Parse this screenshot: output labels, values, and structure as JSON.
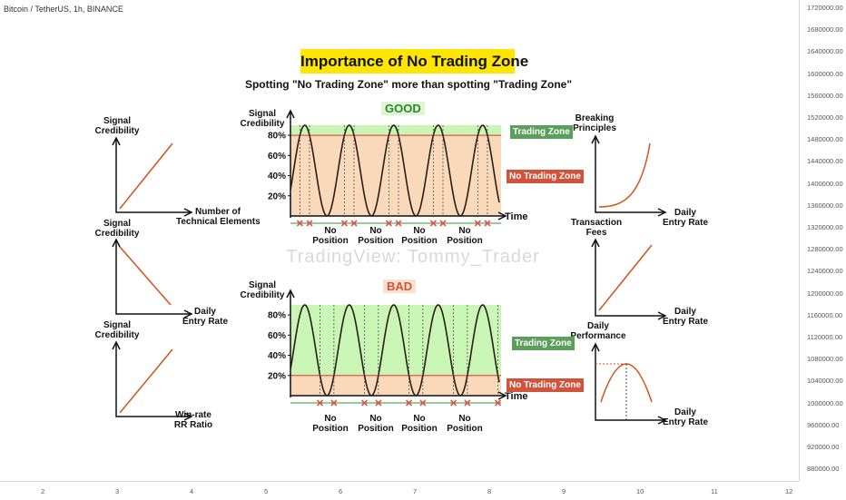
{
  "symbol_label": "Bitcoin / TetherUS, 1h, BINANCE",
  "price_axis": [
    "1720000.00",
    "1680000.00",
    "1640000.00",
    "1600000.00",
    "1560000.00",
    "1520000.00",
    "1480000.00",
    "1440000.00",
    "1400000.00",
    "1360000.00",
    "1320000.00",
    "1280000.00",
    "1240000.00",
    "1200000.00",
    "1160000.00",
    "1120000.00",
    "1080000.00",
    "1040000.00",
    "1000000.00",
    "960000.00",
    "920000.00",
    "880000.00"
  ],
  "time_axis": [
    "2",
    "3",
    "4",
    "5",
    "6",
    "7",
    "8",
    "9",
    "10",
    "11",
    "12"
  ],
  "title": "Importance of No Trading Zone",
  "subtitle": "Spotting \"No Trading Zone\" more than spotting \"Trading Zone\"",
  "watermark": "TradingView: Tommy_Trader",
  "left_charts": [
    {
      "y_label_1": "Signal",
      "y_label_2": "Credibility",
      "x_label_1": "Number of",
      "x_label_2": "Technical Elements",
      "trend": "up"
    },
    {
      "y_label_1": "Signal",
      "y_label_2": "Credibility",
      "x_label_1": "Daily",
      "x_label_2": "Entry Rate",
      "trend": "down"
    },
    {
      "y_label_1": "Signal",
      "y_label_2": "Credibility",
      "x_label_1": "Win-rate",
      "x_label_2": "RR Ratio",
      "trend": "up"
    }
  ],
  "right_charts": [
    {
      "y_label_1": "Breaking",
      "y_label_2": "Principles",
      "x_label_1": "Daily",
      "x_label_2": "Entry Rate",
      "trend": "exponential"
    },
    {
      "y_label_1": "Transaction",
      "y_label_2": "Fees",
      "x_label_1": "Daily",
      "x_label_2": "Entry Rate",
      "trend": "up"
    },
    {
      "y_label_1": "Daily",
      "y_label_2": "Performance",
      "x_label_1": "Daily",
      "x_label_2": "Entry Rate",
      "trend": "peak"
    }
  ],
  "center_top": {
    "verdict": "GOOD",
    "y_label_1": "Signal",
    "y_label_2": "Credibility",
    "x_label": "Time",
    "yticks": [
      "80%",
      "60%",
      "40%",
      "20%"
    ],
    "zone_threshold": 0.8,
    "trading_zone_label": "Trading Zone",
    "no_trading_zone_label": "No Trading Zone",
    "no_position_labels": [
      [
        "No",
        "Position"
      ],
      [
        "No",
        "Position"
      ],
      [
        "No",
        "Position"
      ],
      [
        "No",
        "Position"
      ]
    ]
  },
  "center_bottom": {
    "verdict": "BAD",
    "y_label_1": "Signal",
    "y_label_2": "Credibility",
    "x_label": "Time",
    "yticks": [
      "80%",
      "60%",
      "40%",
      "20%"
    ],
    "zone_threshold": 0.2,
    "trading_zone_label": "Trading Zone",
    "no_trading_zone_label": "No Trading Zone",
    "no_position_labels": [
      [
        "No",
        "Position"
      ],
      [
        "No",
        "Position"
      ],
      [
        "No",
        "Position"
      ],
      [
        "No",
        "Position"
      ]
    ]
  },
  "colors": {
    "trading_zone_fill": "#c9f5b5",
    "no_trading_zone_fill": "#f9d9b9",
    "threshold_line": "#e0554a",
    "curve": "#2a1e16",
    "trend_line": "#d4541f",
    "marker_green": "#2e9a2e",
    "marker_red": "#e0554a",
    "title_bg": "#ffe600"
  }
}
